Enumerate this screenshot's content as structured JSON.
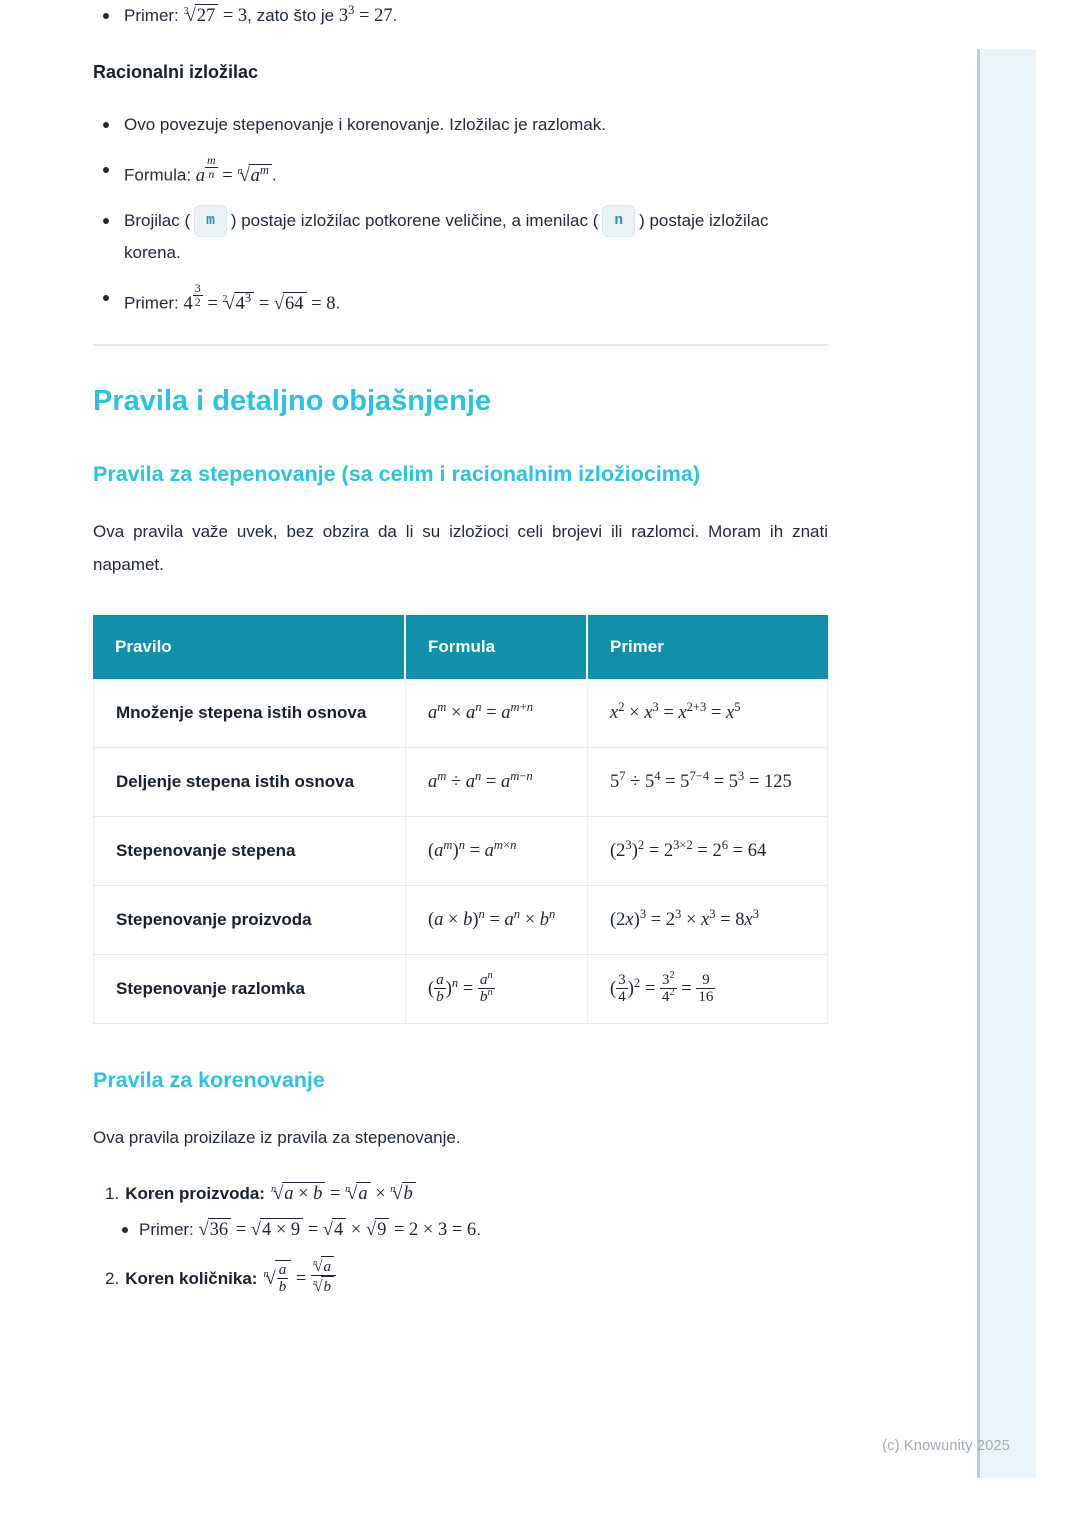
{
  "page": {
    "footer": "(c) Knowunity 2025"
  },
  "colors": {
    "accent_cyan": "#2bc3e3",
    "table_header_teal": "#1090ab",
    "strip_blue": "#eaf4fa",
    "badge_teal": "#1f94ac"
  },
  "intro": {
    "bullet_primer_cube": [
      {
        "t": "Primer: "
      },
      {
        "m": "\\sqrt[3]{27} = 3"
      },
      {
        "t": ", zato što je "
      },
      {
        "m": "3^{3} = 27"
      },
      {
        "t": "."
      }
    ],
    "heading_rational": "Racionalni izložilac",
    "bullets": [
      [
        {
          "t": "Ovo povezuje stepenovanje i korenovanje. Izložilac je razlomak."
        }
      ],
      [
        {
          "t": "Formula: "
        },
        {
          "m": "a^{\\frac{m}{n}} = \\sqrt[n]{a^{m}}"
        },
        {
          "t": "."
        }
      ],
      [
        {
          "t": "Brojilac ("
        },
        {
          "c": "m"
        },
        {
          "t": ") postaje izložilac potkorene veličine, a imenilac ("
        },
        {
          "c": "n"
        },
        {
          "t": ") postaje izložilac korena."
        }
      ],
      [
        {
          "t": "Primer: "
        },
        {
          "m": "4^{\\frac{3}{2}} = \\sqrt[2]{4^{3}} = \\sqrt{64} = 8"
        },
        {
          "t": "."
        }
      ]
    ]
  },
  "section": {
    "h1": "Pravila i detaljno objašnjenje",
    "h2_step": "Pravila za stepenovanje (sa celim i racionalnim izložiocima)",
    "para": "Ova pravila važe uvek, bez obzira da li su izložioci celi brojevi ili razlomci. Moram ih znati napamet."
  },
  "table": {
    "headers": [
      "Pravilo",
      "Formula",
      "Primer"
    ],
    "rows": [
      {
        "rule": "Množenje stepena istih osnova",
        "formula": "a^{m} × a^{n} = a^{m+n}",
        "primer": "x^{2} × x^{3} = x^{2+3} = x^{5}"
      },
      {
        "rule": "Deljenje stepena istih osnova",
        "formula": "a^{m} ÷ a^{n} = a^{m−n}",
        "primer": "5^{7} ÷ 5^{4} = 5^{7−4} = 5^{3} = 125"
      },
      {
        "rule": "Stepenovanje stepena",
        "formula": "(a^{m})^{n} = a^{m×n}",
        "primer": "(2^{3})^{2} = 2^{3×2} = 2^{6} = 64"
      },
      {
        "rule": "Stepenovanje proizvoda",
        "formula": "(a × b)^{n} = a^{n} × b^{n}",
        "primer": "(2x)^{3} = 2^{3} × x^{3} = 8x^{3}"
      },
      {
        "rule": "Stepenovanje razlomka",
        "formula": "(\\frac{a}{b})^{n} = \\frac{a^{n}}{b^{n}}",
        "primer": "(\\frac{3}{4})^{2} = \\frac{3^{2}}{4^{2}} = \\frac{9}{16}"
      }
    ]
  },
  "koren": {
    "h2": "Pravila za korenovanje",
    "para": "Ova pravila proizilaze iz pravila za stepenovanje.",
    "items": [
      {
        "num": "1.",
        "label": "Koren proizvoda:",
        "math": "\\sqrt[n]{a × b} = \\sqrt[n]{a} × \\sqrt[n]{b}",
        "sub": [
          {
            "t": "Primer: "
          },
          {
            "m": "\\sqrt{36} = \\sqrt{4 × 9} = \\sqrt{4} × \\sqrt{9} = 2 × 3 = 6"
          },
          {
            "t": "."
          }
        ]
      },
      {
        "num": "2.",
        "label": "Koren količnika:",
        "math": "\\sqrt[n]{\\frac{a}{b}} = \\frac{\\sqrt[n]{a}}{\\sqrt[n]{b}}",
        "sub": []
      }
    ]
  }
}
